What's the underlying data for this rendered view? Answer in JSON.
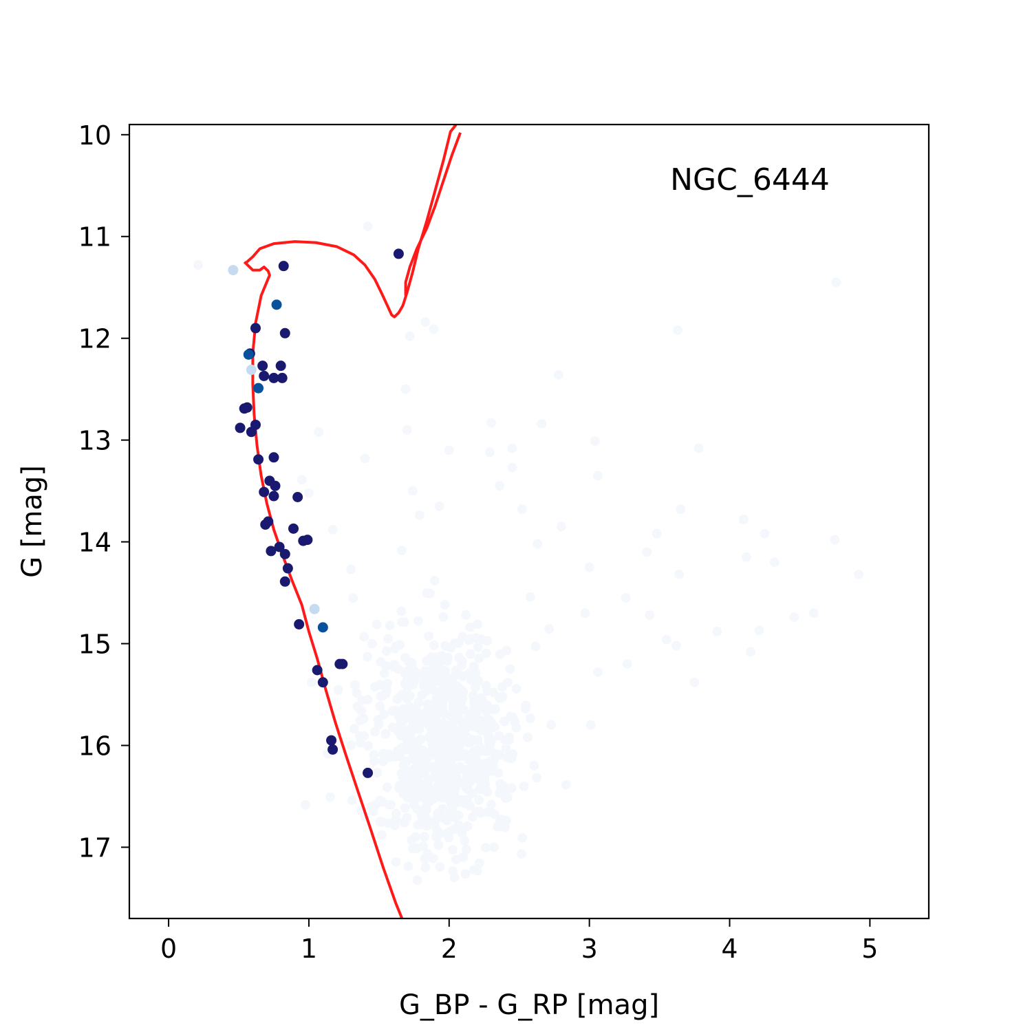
{
  "chart_data": {
    "type": "scatter",
    "annotation": "NGC_6444",
    "xlabel": "G_BP - G_RP [mag]",
    "ylabel": "G [mag]",
    "xlim": [
      -0.28,
      5.42
    ],
    "ylim": [
      17.7,
      9.9
    ],
    "y_inverted": true,
    "xticks": [
      0,
      1,
      2,
      3,
      4,
      5
    ],
    "yticks": [
      10,
      11,
      12,
      13,
      14,
      15,
      16,
      17
    ],
    "grid": false,
    "colors": {
      "isochrone": "#ff1a1a",
      "member_high": "#191970",
      "member_mid": "#08519c",
      "member_low": "#c6dbef",
      "field": "#f4f8fd"
    },
    "series": [
      {
        "role": "isochrone",
        "style": "line",
        "points": [
          [
            0.54,
            11.25
          ],
          [
            0.6,
            11.33
          ],
          [
            0.65,
            11.33
          ],
          [
            0.68,
            11.3
          ],
          [
            0.71,
            11.34
          ],
          [
            0.72,
            11.38
          ],
          [
            0.66,
            11.58
          ],
          [
            0.62,
            11.85
          ],
          [
            0.6,
            12.15
          ],
          [
            0.6,
            12.45
          ],
          [
            0.61,
            12.75
          ],
          [
            0.63,
            13.05
          ],
          [
            0.66,
            13.35
          ],
          [
            0.7,
            13.62
          ],
          [
            0.75,
            13.88
          ],
          [
            0.81,
            14.12
          ],
          [
            0.88,
            14.38
          ],
          [
            0.95,
            14.62
          ],
          [
            1.0,
            14.88
          ],
          [
            1.06,
            15.15
          ],
          [
            1.12,
            15.45
          ],
          [
            1.19,
            15.78
          ],
          [
            1.27,
            16.12
          ],
          [
            1.35,
            16.45
          ],
          [
            1.44,
            16.82
          ],
          [
            1.53,
            17.2
          ],
          [
            1.62,
            17.55
          ],
          [
            1.67,
            17.72
          ]
        ]
      },
      {
        "role": "isochrone-evolved",
        "style": "line",
        "points": [
          [
            0.55,
            11.26
          ],
          [
            0.6,
            11.2
          ],
          [
            0.65,
            11.12
          ],
          [
            0.75,
            11.07
          ],
          [
            0.9,
            11.05
          ],
          [
            1.05,
            11.06
          ],
          [
            1.2,
            11.1
          ],
          [
            1.32,
            11.18
          ],
          [
            1.4,
            11.28
          ],
          [
            1.47,
            11.42
          ],
          [
            1.52,
            11.56
          ],
          [
            1.56,
            11.68
          ],
          [
            1.59,
            11.77
          ],
          [
            1.61,
            11.79
          ],
          [
            1.64,
            11.75
          ],
          [
            1.67,
            11.68
          ],
          [
            1.7,
            11.55
          ],
          [
            1.74,
            11.35
          ],
          [
            1.78,
            11.12
          ],
          [
            1.84,
            10.85
          ],
          [
            1.9,
            10.55
          ],
          [
            1.96,
            10.25
          ],
          [
            2.01,
            9.97
          ],
          [
            2.05,
            9.9
          ]
        ]
      },
      {
        "role": "isochrone-hook",
        "style": "line",
        "points": [
          [
            2.08,
            9.98
          ],
          [
            2.02,
            10.2
          ],
          [
            1.96,
            10.45
          ],
          [
            1.9,
            10.7
          ],
          [
            1.84,
            10.92
          ],
          [
            1.77,
            11.12
          ],
          [
            1.72,
            11.3
          ],
          [
            1.69,
            11.45
          ],
          [
            1.69,
            11.58
          ]
        ]
      },
      {
        "role": "members-high",
        "style": "points",
        "color_key": "member_high",
        "points": [
          [
            1.64,
            11.17
          ],
          [
            0.82,
            11.29
          ],
          [
            0.62,
            11.9
          ],
          [
            0.83,
            11.95
          ],
          [
            0.58,
            12.15
          ],
          [
            0.67,
            12.27
          ],
          [
            0.8,
            12.27
          ],
          [
            0.68,
            12.37
          ],
          [
            0.75,
            12.39
          ],
          [
            0.81,
            12.39
          ],
          [
            0.54,
            12.69
          ],
          [
            0.56,
            12.68
          ],
          [
            0.62,
            12.85
          ],
          [
            0.51,
            12.88
          ],
          [
            0.59,
            12.92
          ],
          [
            0.64,
            13.19
          ],
          [
            0.75,
            13.17
          ],
          [
            0.72,
            13.4
          ],
          [
            0.76,
            13.45
          ],
          [
            0.68,
            13.51
          ],
          [
            0.75,
            13.55
          ],
          [
            0.92,
            13.56
          ],
          [
            0.71,
            13.8
          ],
          [
            0.69,
            13.83
          ],
          [
            0.89,
            13.87
          ],
          [
            0.96,
            13.99
          ],
          [
            0.99,
            13.98
          ],
          [
            0.79,
            14.05
          ],
          [
            0.73,
            14.09
          ],
          [
            0.83,
            14.12
          ],
          [
            0.85,
            14.26
          ],
          [
            0.83,
            14.39
          ],
          [
            0.93,
            14.81
          ],
          [
            1.06,
            15.26
          ],
          [
            1.22,
            15.2
          ],
          [
            1.24,
            15.2
          ],
          [
            1.1,
            15.38
          ],
          [
            1.16,
            15.95
          ],
          [
            1.17,
            16.04
          ],
          [
            1.42,
            16.27
          ]
        ]
      },
      {
        "role": "members-mid",
        "style": "points",
        "color_key": "member_mid",
        "points": [
          [
            0.77,
            11.67
          ],
          [
            0.57,
            12.16
          ],
          [
            0.64,
            12.49
          ],
          [
            1.1,
            14.84
          ]
        ]
      },
      {
        "role": "members-low",
        "style": "points",
        "color_key": "member_low",
        "points": [
          [
            0.46,
            11.33
          ],
          [
            0.59,
            12.31
          ],
          [
            1.04,
            14.66
          ]
        ]
      },
      {
        "role": "field",
        "style": "points",
        "color_key": "field",
        "points": [
          [
            0.21,
            11.28
          ],
          [
            1.42,
            10.9
          ],
          [
            4.76,
            11.45
          ],
          [
            3.63,
            11.92
          ],
          [
            1.72,
            11.98
          ],
          [
            1.83,
            11.84
          ],
          [
            1.89,
            11.91
          ],
          [
            2.78,
            12.36
          ],
          [
            1.69,
            12.5
          ],
          [
            2.3,
            12.83
          ],
          [
            2.66,
            12.84
          ],
          [
            1.07,
            12.92
          ],
          [
            1.7,
            12.9
          ],
          [
            3.78,
            13.08
          ],
          [
            3.04,
            13.01
          ],
          [
            2.45,
            13.08
          ],
          [
            2.29,
            13.12
          ],
          [
            1.4,
            13.18
          ],
          [
            2.0,
            13.1
          ],
          [
            2.45,
            13.27
          ],
          [
            3.06,
            13.35
          ],
          [
            1.74,
            13.5
          ],
          [
            2.36,
            13.45
          ],
          [
            1.93,
            13.65
          ],
          [
            2.52,
            13.68
          ],
          [
            3.65,
            13.68
          ],
          [
            4.1,
            13.78
          ],
          [
            4.25,
            13.92
          ],
          [
            3.48,
            13.92
          ],
          [
            4.75,
            13.98
          ],
          [
            2.63,
            14.02
          ],
          [
            2.8,
            13.85
          ],
          [
            3.41,
            14.1
          ],
          [
            4.12,
            14.15
          ],
          [
            4.32,
            14.2
          ],
          [
            3.0,
            14.25
          ],
          [
            3.64,
            14.32
          ],
          [
            4.92,
            14.32
          ],
          [
            3.26,
            14.55
          ],
          [
            2.97,
            14.7
          ],
          [
            3.43,
            14.72
          ],
          [
            4.46,
            14.74
          ],
          [
            4.6,
            14.7
          ],
          [
            3.91,
            14.88
          ],
          [
            4.21,
            14.87
          ],
          [
            3.55,
            14.96
          ],
          [
            3.62,
            15.02
          ],
          [
            4.15,
            15.08
          ],
          [
            3.27,
            15.2
          ],
          [
            3.06,
            15.28
          ],
          [
            3.01,
            15.8
          ],
          [
            3.75,
            15.38
          ],
          [
            1.02,
            15.38
          ],
          [
            1.45,
            15.0
          ],
          [
            1.3,
            14.27
          ],
          [
            1.17,
            13.88
          ],
          [
            0.95,
            13.39
          ],
          [
            1.0,
            13.52
          ],
          [
            2.56,
            15.92
          ],
          [
            2.3,
            16.58
          ],
          [
            2.32,
            17.0
          ],
          [
            2.05,
            17.12
          ],
          [
            1.83,
            17.2
          ],
          [
            1.62,
            16.73
          ],
          [
            1.52,
            16.88
          ],
          [
            1.4,
            16.7
          ],
          [
            2.1,
            17.1
          ],
          [
            1.76,
            16.9
          ]
        ]
      }
    ],
    "field_cloud": {
      "color_key": "field",
      "center": [
        1.95,
        15.95
      ],
      "spread": [
        0.28,
        0.55
      ],
      "count": 700
    }
  }
}
